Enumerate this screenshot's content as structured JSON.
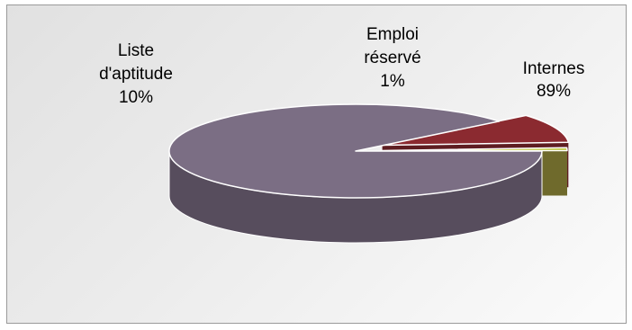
{
  "chart_data": {
    "type": "pie",
    "style": "3d-exploded",
    "legend": "none",
    "slices": [
      {
        "name": "Internes",
        "value": 89,
        "label": "89%",
        "color": "#7b6e84",
        "side_color": "#574d5d"
      },
      {
        "name": "Liste d'aptitude",
        "value": 10,
        "label": "10%",
        "color": "#8b2a30",
        "side_color": "#5e1d21"
      },
      {
        "name": "Emploi réservé",
        "value": 1,
        "label": "1%",
        "color": "#b9c233",
        "side_color": "#6f6a2c"
      }
    ],
    "category_labels": {
      "internes": [
        "Internes"
      ],
      "liste": [
        "Liste",
        "d'aptitude"
      ],
      "emploi": [
        "Emploi",
        "réservé"
      ]
    }
  }
}
